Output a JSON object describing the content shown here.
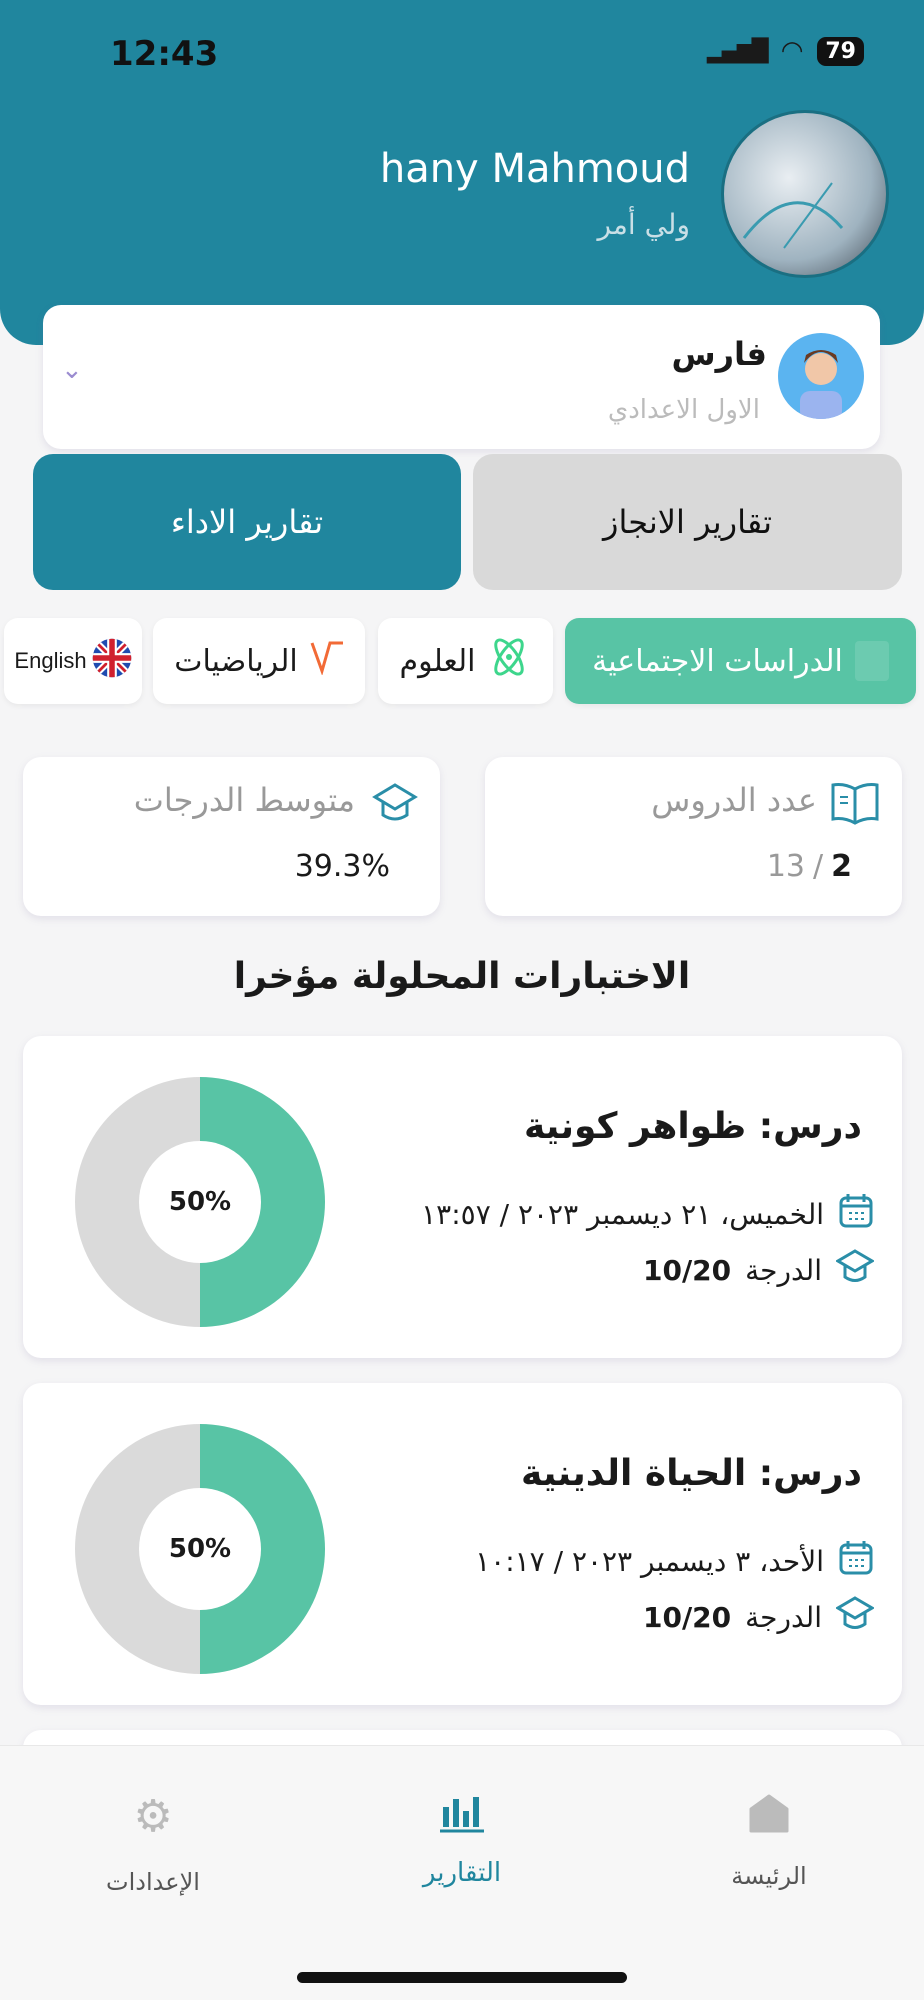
{
  "status_bar": {
    "time": "12:43",
    "battery": "79"
  },
  "profile": {
    "name": "hany Mahmoud",
    "role": "ولي أمر"
  },
  "child": {
    "name": "فارس",
    "grade": "الاول الاعدادي"
  },
  "report_tabs": [
    {
      "label": "تقارير الانجاز",
      "active": false
    },
    {
      "label": "تقارير الاداء",
      "active": true
    }
  ],
  "subjects": [
    {
      "label": "الدراسات الاجتماعية",
      "icon": "book-stack-icon",
      "active": true
    },
    {
      "label": "العلوم",
      "icon": "atom-icon"
    },
    {
      "label": "الرياضيات",
      "icon": "square-root-icon"
    },
    {
      "label": "English",
      "icon": "uk-flag-icon"
    }
  ],
  "stats": {
    "lessons": {
      "label": "عدد الدروس",
      "total": "13",
      "done": "2",
      "sep": "/"
    },
    "average": {
      "label": "متوسط الدرجات",
      "value": "39.3%"
    }
  },
  "recent_heading": "الاختبارات المحلولة مؤخرا",
  "tests": [
    {
      "title": "درس: ظواهر كونية",
      "date": "الخميس، ٢١ ديسمبر ٢٠٢٣ / ١٣:٥٧",
      "grade_label": "الدرجة",
      "grade": "10/20",
      "percent_label": "50%",
      "percent": 50
    },
    {
      "title": "درس: الحياة الدينية",
      "date": "الأحد، ٣ ديسمبر ٢٠٢٣ / ١٠:١٧",
      "grade_label": "الدرجة",
      "grade": "10/20",
      "percent_label": "50%",
      "percent": 50
    }
  ],
  "tabbar": {
    "settings": "الإعدادات",
    "reports": "التقارير",
    "home": "الرئيسة",
    "active": "reports"
  },
  "colors": {
    "primary": "#20869e",
    "green": "#58c4a5",
    "gray": "#dadada"
  }
}
